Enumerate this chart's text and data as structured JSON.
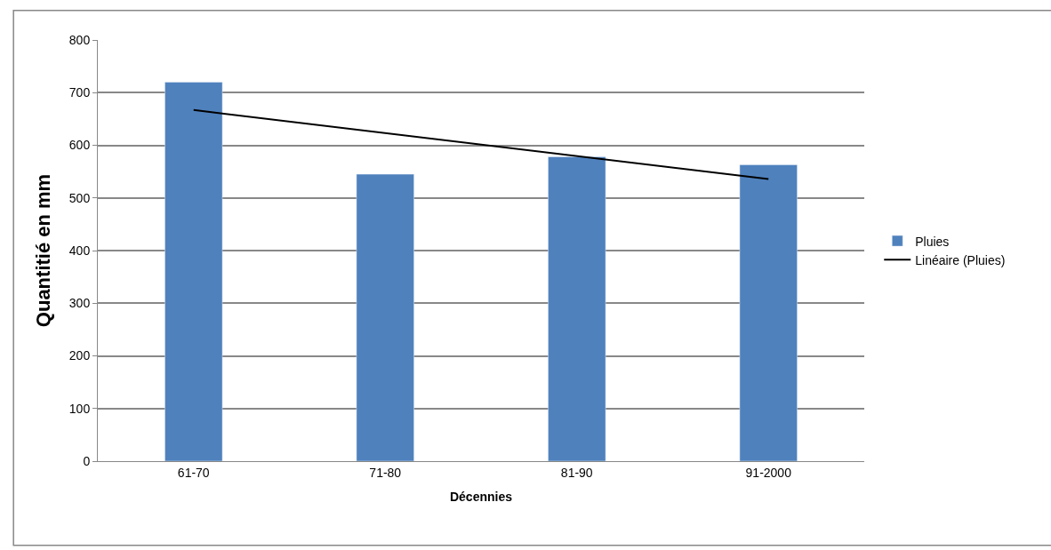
{
  "chart_data": {
    "type": "bar",
    "xlabel": "Décennies",
    "ylabel": "Quantitié en mm",
    "categories": [
      "61-70",
      "71-80",
      "81-90",
      "91-2000"
    ],
    "series": [
      {
        "name": "Pluies",
        "color": "#4f81bd",
        "values": [
          720,
          545,
          578,
          563
        ]
      },
      {
        "name": "Linéaire (Pluies)",
        "type": "line",
        "color": "#000000",
        "x": [
          "61-70",
          "91-2000"
        ],
        "values": [
          667,
          536
        ],
        "marker": "none",
        "line_style": "solid"
      }
    ],
    "ylim": [
      0,
      800
    ],
    "yticks": [
      0,
      100,
      200,
      300,
      400,
      500,
      600,
      700,
      800
    ],
    "grid": "y",
    "legend": "right"
  }
}
